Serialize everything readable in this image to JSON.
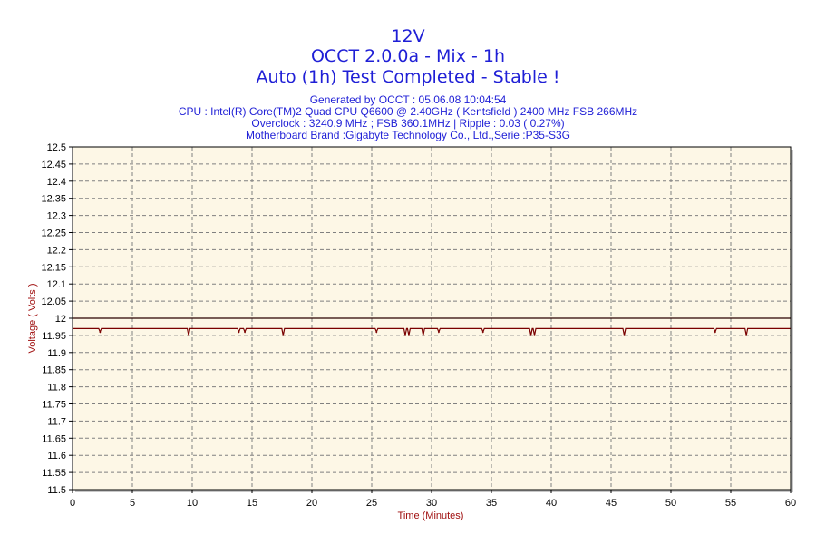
{
  "colors": {
    "title": "#1f1fd6",
    "axis_label": "#a01010",
    "plot_bg": "#fdf7e6",
    "grid": "#808080",
    "series": "#7a0000",
    "frame": "#000000"
  },
  "header": {
    "title_line1": "12V",
    "title_line2": "OCCT 2.0.0a - Mix - 1h",
    "title_line3": "Auto (1h) Test Completed - Stable !",
    "info_line1": "Generated by OCCT : 05.06.08 10:04:54",
    "info_line2": "CPU : Intel(R) Core(TM)2 Quad CPU Q6600 @ 2.40GHz ( Kentsfield ) 2400 MHz FSB 266MHz",
    "info_line3": "Overclock : 3240.9 MHz ; FSB 360.1MHz | Ripple : 0.03 ( 0.27%)",
    "info_line4": "Motherboard Brand :Gigabyte Technology Co., Ltd.,Serie :P35-S3G"
  },
  "chart_data": {
    "type": "line",
    "xlabel": "Time (Minutes)",
    "ylabel": "Voltage ( Volts )",
    "xlim": [
      0,
      60
    ],
    "ylim": [
      11.5,
      12.5
    ],
    "xticks": [
      0,
      5,
      10,
      15,
      20,
      25,
      30,
      35,
      40,
      45,
      50,
      55,
      60
    ],
    "yticks": [
      11.5,
      11.55,
      11.6,
      11.65,
      11.7,
      11.75,
      11.8,
      11.85,
      11.9,
      11.95,
      12,
      12.05,
      12.1,
      12.15,
      12.2,
      12.25,
      12.3,
      12.35,
      12.4,
      12.45,
      12.5
    ],
    "ytick_labels": [
      "11.5",
      "11.55",
      "11.6",
      "11.65",
      "11.7",
      "11.75",
      "11.8",
      "11.85",
      "11.9",
      "11.95",
      "12",
      "12.05",
      "12.1",
      "12.15",
      "12.2",
      "12.25",
      "12.3",
      "12.35",
      "12.4",
      "12.45",
      "12.5"
    ],
    "grid": true,
    "reference_line": 12.0,
    "series": [
      {
        "baseline": 11.97,
        "dips": [
          {
            "x": 2.3,
            "y": 11.96
          },
          {
            "x": 9.7,
            "y": 11.95
          },
          {
            "x": 13.9,
            "y": 11.96
          },
          {
            "x": 14.4,
            "y": 11.96
          },
          {
            "x": 17.6,
            "y": 11.95
          },
          {
            "x": 25.4,
            "y": 11.96
          },
          {
            "x": 27.8,
            "y": 11.95
          },
          {
            "x": 28.1,
            "y": 11.95
          },
          {
            "x": 29.3,
            "y": 11.95
          },
          {
            "x": 30.6,
            "y": 11.96
          },
          {
            "x": 34.3,
            "y": 11.96
          },
          {
            "x": 38.3,
            "y": 11.95
          },
          {
            "x": 38.6,
            "y": 11.95
          },
          {
            "x": 46.1,
            "y": 11.95
          },
          {
            "x": 53.7,
            "y": 11.96
          },
          {
            "x": 56.3,
            "y": 11.95
          }
        ]
      }
    ]
  }
}
